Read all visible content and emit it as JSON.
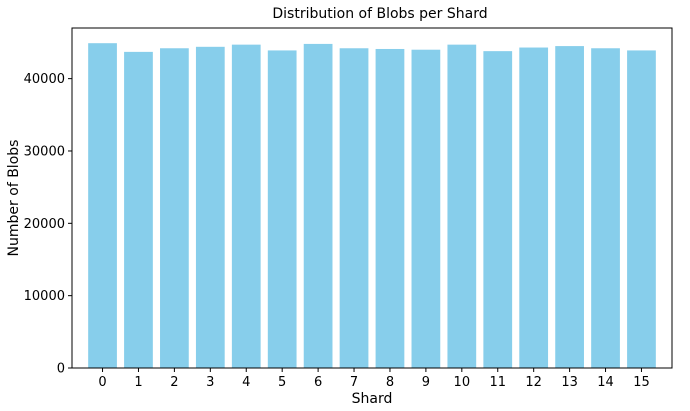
{
  "chart_data": {
    "type": "bar",
    "title": "Distribution of Blobs per Shard",
    "xlabel": "Shard",
    "ylabel": "Number of Blobs",
    "categories": [
      "0",
      "1",
      "2",
      "3",
      "4",
      "5",
      "6",
      "7",
      "8",
      "9",
      "10",
      "11",
      "12",
      "13",
      "14",
      "15"
    ],
    "values": [
      44900,
      43700,
      44200,
      44400,
      44700,
      43900,
      44800,
      44200,
      44100,
      44000,
      44700,
      43800,
      44300,
      44500,
      44200,
      43900
    ],
    "ylim": [
      0,
      47000
    ],
    "yticks": [
      0,
      10000,
      20000,
      30000,
      40000
    ],
    "grid": false,
    "bar_color": "#87CEEB"
  }
}
